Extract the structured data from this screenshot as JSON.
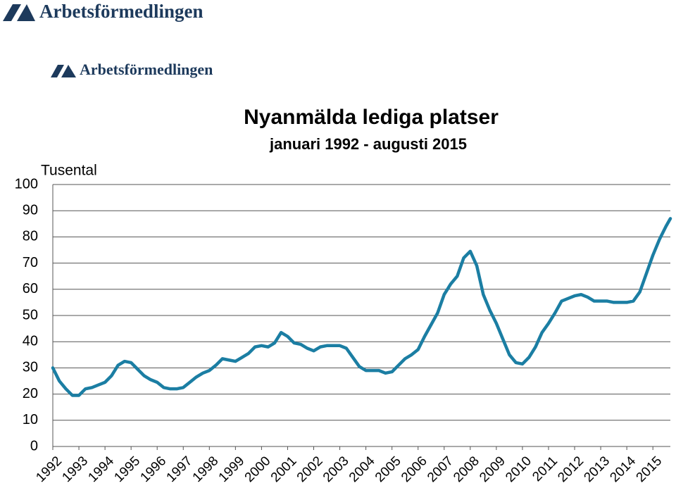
{
  "logos": [
    "Arbetsförmedlingen",
    "Arbetsförmedlingen"
  ],
  "chart_data": {
    "type": "line",
    "title": "Nyanmälda lediga platser",
    "subtitle": "januari 1992 - augusti 2015",
    "y_label": "Tusental",
    "x": [
      1992.0,
      1992.25,
      1992.5,
      1992.75,
      1993.0,
      1993.25,
      1993.5,
      1993.75,
      1994.0,
      1994.25,
      1994.5,
      1994.75,
      1995.0,
      1995.25,
      1995.5,
      1995.75,
      1996.0,
      1996.25,
      1996.5,
      1996.75,
      1997.0,
      1997.25,
      1997.5,
      1997.75,
      1998.0,
      1998.25,
      1998.5,
      1998.75,
      1999.0,
      1999.25,
      1999.5,
      1999.75,
      2000.0,
      2000.25,
      2000.5,
      2000.75,
      2001.0,
      2001.25,
      2001.5,
      2001.75,
      2002.0,
      2002.25,
      2002.5,
      2002.75,
      2003.0,
      2003.25,
      2003.5,
      2003.75,
      2004.0,
      2004.25,
      2004.5,
      2004.75,
      2005.0,
      2005.25,
      2005.5,
      2005.75,
      2006.0,
      2006.25,
      2006.5,
      2006.75,
      2007.0,
      2007.25,
      2007.5,
      2007.75,
      2008.0,
      2008.25,
      2008.5,
      2008.75,
      2009.0,
      2009.25,
      2009.5,
      2009.75,
      2010.0,
      2010.25,
      2010.5,
      2010.75,
      2011.0,
      2011.25,
      2011.5,
      2011.75,
      2012.0,
      2012.25,
      2012.5,
      2012.75,
      2013.0,
      2013.25,
      2013.5,
      2013.75,
      2014.0,
      2014.25,
      2014.5,
      2014.75,
      2015.0,
      2015.25,
      2015.5,
      2015.67
    ],
    "series": [
      {
        "name": "Nyanmälda lediga platser",
        "color": "#1b7ea3",
        "values": [
          30,
          25,
          22,
          19.5,
          19.5,
          22,
          22.5,
          23.5,
          24.5,
          27,
          31,
          32.5,
          32,
          29.5,
          27,
          25.5,
          24.5,
          22.5,
          22,
          22,
          22.5,
          24.5,
          26.5,
          28,
          29,
          31,
          33.5,
          33,
          32.5,
          34,
          35.5,
          38,
          38.5,
          38,
          39.5,
          43.5,
          42,
          39.5,
          39,
          37.5,
          36.5,
          38,
          38.5,
          38.5,
          38.5,
          37.5,
          34,
          30.5,
          29,
          29,
          29,
          28,
          28.5,
          31,
          33.5,
          35,
          37,
          42,
          46.5,
          51,
          58,
          62,
          65,
          72,
          74.5,
          69,
          58,
          52,
          47,
          41,
          35,
          32,
          31.5,
          34,
          38,
          43.5,
          47,
          51,
          55.5,
          56.5,
          57.5,
          58,
          57,
          55.5,
          55.5,
          55.5,
          55,
          55,
          55,
          55.5,
          59,
          66,
          73,
          79,
          84,
          87
        ]
      }
    ],
    "xlim": [
      1992,
      2015.67
    ],
    "xticks": [
      1992,
      1993,
      1994,
      1995,
      1996,
      1997,
      1998,
      1999,
      2000,
      2001,
      2002,
      2003,
      2004,
      2005,
      2006,
      2007,
      2008,
      2009,
      2010,
      2011,
      2012,
      2013,
      2014,
      2015
    ],
    "ylim": [
      0,
      100
    ],
    "yticks": [
      0,
      10,
      20,
      30,
      40,
      50,
      60,
      70,
      80,
      90,
      100
    ],
    "grid": true
  }
}
